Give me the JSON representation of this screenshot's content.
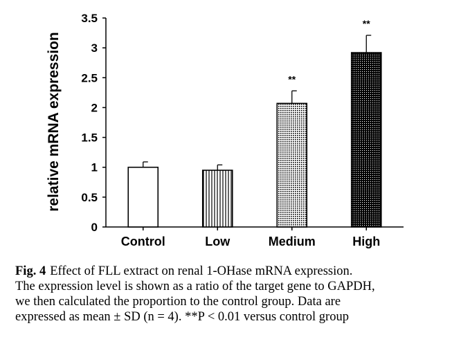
{
  "chart_data": {
    "type": "bar",
    "ylabel": "relative mRNA expression",
    "xlabel": "",
    "ylim": [
      0,
      3.5
    ],
    "yticks": [
      "0",
      "0.5",
      "1",
      "1.5",
      "2",
      "2.5",
      "3",
      "3.5"
    ],
    "categories": [
      "Control",
      "Low",
      "Medium",
      "High"
    ],
    "values": [
      1.0,
      0.95,
      2.07,
      2.92
    ],
    "errors": [
      0.09,
      0.09,
      0.21,
      0.29
    ],
    "significance": [
      "",
      "",
      "**",
      "**"
    ],
    "patterns": [
      "white",
      "vertical-lines",
      "dots",
      "dense-dots"
    ],
    "grid": false
  },
  "caption": {
    "label": "Fig. 4",
    "lines": [
      "Effect of FLL extract on renal 1-OHase mRNA expression.",
      "The expression level is shown as a ratio of the target gene to GAPDH,",
      "we then calculated the proportion to the control group. Data are",
      "expressed as mean ± SD (n = 4). **P < 0.01 versus control group"
    ]
  }
}
